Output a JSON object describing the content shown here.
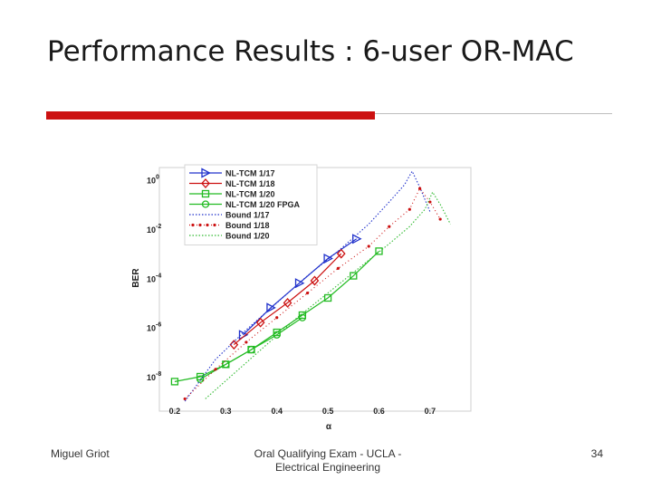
{
  "slide": {
    "title": "Performance Results : 6-user OR-MAC",
    "accent_color": "#cc1111"
  },
  "footer": {
    "left": "Miguel Griot",
    "center": "Oral Qualifying Exam - UCLA - Electrical Engineering",
    "right": "34"
  },
  "chart_data": {
    "type": "line",
    "title": "",
    "xlabel": "α",
    "ylabel": "BER",
    "xlim": [
      0.17,
      0.78
    ],
    "ylim": [
      -9.4,
      0.5
    ],
    "yscale": "log",
    "x_ticks": [
      0.2,
      0.3,
      0.4,
      0.5,
      0.6,
      0.7
    ],
    "x_tick_labels": [
      "0.2",
      "0.3",
      "0.4",
      "0.5",
      "0.6",
      "0.7"
    ],
    "y_ticks": [
      0,
      -2,
      -4,
      -6,
      -8
    ],
    "y_tick_labels": [
      {
        "base": "10",
        "exp": "0"
      },
      {
        "base": "10",
        "exp": "-2"
      },
      {
        "base": "10",
        "exp": "-4"
      },
      {
        "base": "10",
        "exp": "-6"
      },
      {
        "base": "10",
        "exp": "-8"
      }
    ],
    "grid": false,
    "legend_position": "top-left",
    "series": [
      {
        "name": "NL-TCM 1/17",
        "color": "#2233cc",
        "style": "solid",
        "marker": "triangle-right",
        "x": [
          0.334,
          0.388,
          0.444,
          0.5,
          0.556
        ],
        "y": [
          -6.3,
          -5.2,
          -4.2,
          -3.2,
          -2.4
        ]
      },
      {
        "name": "NL-TCM 1/18",
        "color": "#cc1111",
        "style": "solid",
        "marker": "diamond",
        "x": [
          0.316,
          0.368,
          0.421,
          0.474,
          0.526
        ],
        "y": [
          -6.7,
          -5.8,
          -5.0,
          -4.1,
          -3.0
        ]
      },
      {
        "name": "NL-TCM 1/20",
        "color": "#22bb22",
        "style": "solid",
        "marker": "square",
        "x": [
          0.2,
          0.25,
          0.3,
          0.35,
          0.4,
          0.45,
          0.5,
          0.55,
          0.6
        ],
        "y": [
          -8.2,
          -8.0,
          -7.5,
          -6.9,
          -6.2,
          -5.5,
          -4.8,
          -3.9,
          -2.9
        ]
      },
      {
        "name": "NL-TCM 1/20 FPGA",
        "color": "#22bb22",
        "style": "solid",
        "marker": "circle",
        "x": [
          0.25,
          0.3,
          0.35,
          0.4,
          0.45
        ],
        "y": [
          -8.1,
          -7.5,
          -6.9,
          -6.3,
          -5.6
        ]
      },
      {
        "name": "Bound 1/17",
        "color": "#2233cc",
        "style": "dotted",
        "marker": "none",
        "x": [
          0.22,
          0.28,
          0.34,
          0.4,
          0.46,
          0.52,
          0.58,
          0.62,
          0.65,
          0.665,
          0.68,
          0.7
        ],
        "y": [
          -9.0,
          -7.3,
          -6.1,
          -5.0,
          -3.9,
          -2.9,
          -1.8,
          -0.9,
          -0.2,
          0.35,
          -0.3,
          -1.3
        ]
      },
      {
        "name": "Bound 1/18",
        "color": "#cc1111",
        "style": "dotted-marker",
        "marker": "dot",
        "x": [
          0.22,
          0.28,
          0.34,
          0.4,
          0.46,
          0.52,
          0.58,
          0.62,
          0.66,
          0.68,
          0.7,
          0.72
        ],
        "y": [
          -8.9,
          -7.7,
          -6.6,
          -5.6,
          -4.6,
          -3.6,
          -2.7,
          -1.9,
          -1.2,
          -0.35,
          -0.9,
          -1.6
        ]
      },
      {
        "name": "Bound 1/20",
        "color": "#33bb33",
        "style": "dotted",
        "marker": "none",
        "x": [
          0.26,
          0.32,
          0.38,
          0.44,
          0.5,
          0.56,
          0.62,
          0.66,
          0.69,
          0.705,
          0.72,
          0.74
        ],
        "y": [
          -8.9,
          -7.8,
          -6.7,
          -5.6,
          -4.6,
          -3.6,
          -2.6,
          -1.9,
          -1.2,
          -0.5,
          -1.0,
          -1.8
        ]
      }
    ]
  }
}
